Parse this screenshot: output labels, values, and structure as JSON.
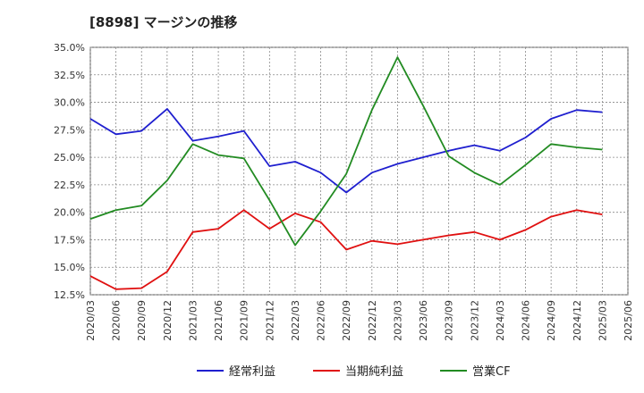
{
  "chart_data": {
    "type": "line",
    "title": "[8898]  マージンの推移",
    "xlabel": "",
    "ylabel": "",
    "ylim": [
      12.5,
      35.0
    ],
    "y_ticks": [
      "12.5%",
      "15.0%",
      "17.5%",
      "20.0%",
      "22.5%",
      "25.0%",
      "27.5%",
      "30.0%",
      "32.5%",
      "35.0%"
    ],
    "y_tick_values": [
      12.5,
      15.0,
      17.5,
      20.0,
      22.5,
      25.0,
      27.5,
      30.0,
      32.5,
      35.0
    ],
    "categories": [
      "2020/03",
      "2020/06",
      "2020/09",
      "2020/12",
      "2021/03",
      "2021/06",
      "2021/09",
      "2021/12",
      "2022/03",
      "2022/06",
      "2022/09",
      "2022/12",
      "2023/03",
      "2023/06",
      "2023/09",
      "2023/12",
      "2024/03",
      "2024/06",
      "2024/09",
      "2024/12",
      "2025/03",
      "2025/06"
    ],
    "grid": true,
    "legend_position": "bottom",
    "series": [
      {
        "name": "経常利益",
        "color": "#1f1fcf",
        "values": [
          28.5,
          27.1,
          27.4,
          29.4,
          26.5,
          26.9,
          27.4,
          24.2,
          24.6,
          23.6,
          21.8,
          23.6,
          24.4,
          25.0,
          25.6,
          26.1,
          25.6,
          26.8,
          28.5,
          29.3,
          29.1,
          null
        ]
      },
      {
        "name": "当期純利益",
        "color": "#e01010",
        "values": [
          14.2,
          13.0,
          13.1,
          14.6,
          18.2,
          18.5,
          20.2,
          18.5,
          19.9,
          19.1,
          16.6,
          17.4,
          17.1,
          17.5,
          17.9,
          18.2,
          17.5,
          18.4,
          19.6,
          20.2,
          19.8,
          null
        ]
      },
      {
        "name": "営業CF",
        "color": "#228b22",
        "values": [
          19.4,
          20.2,
          20.6,
          22.9,
          26.2,
          25.2,
          24.9,
          21.1,
          17.0,
          20.1,
          23.5,
          29.3,
          34.1,
          29.7,
          25.1,
          23.6,
          22.5,
          24.3,
          26.2,
          25.9,
          25.7,
          null
        ]
      }
    ]
  }
}
